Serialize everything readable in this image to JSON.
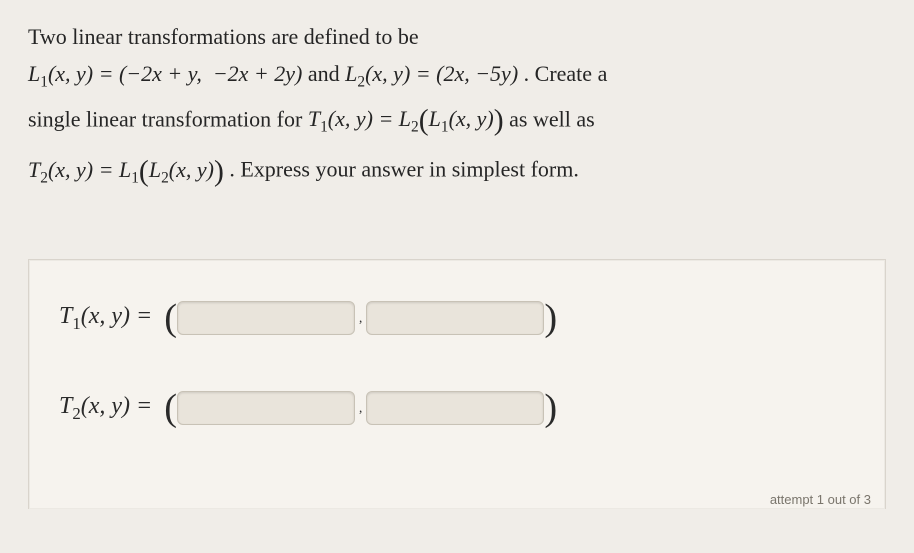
{
  "problem": {
    "intro": "Two linear transformations are defined to be",
    "l1_lhs": "L₁(x, y) = (−2x + y,  −2x + 2y)",
    "conj_and": " and ",
    "l2_lhs": "L₂(x, y) = (2x, −5y)",
    "period_create": " . Create a",
    "line2a": "single linear transformation for ",
    "t1_def": "T₁(x, y) = L₂",
    "inner_l1": "L₁(x, y)",
    "aswellas": " as well as",
    "t2_def": "T₂(x, y) = L₁",
    "inner_l2": "L₂(x, y)",
    "closing": ". Express your answer in simplest form."
  },
  "answers": {
    "t1_label": "T₁(x, y) = ",
    "t2_label": "T₂(x, y) = "
  },
  "footer": {
    "attempt_text": "attempt 1 out of 3"
  },
  "style": {
    "bg": "#f0ede8",
    "panel_bg": "#f6f3ee",
    "input_bg": "#e9e4db",
    "input_border": "#c8c2b6",
    "text_color": "#2a2a2a"
  }
}
